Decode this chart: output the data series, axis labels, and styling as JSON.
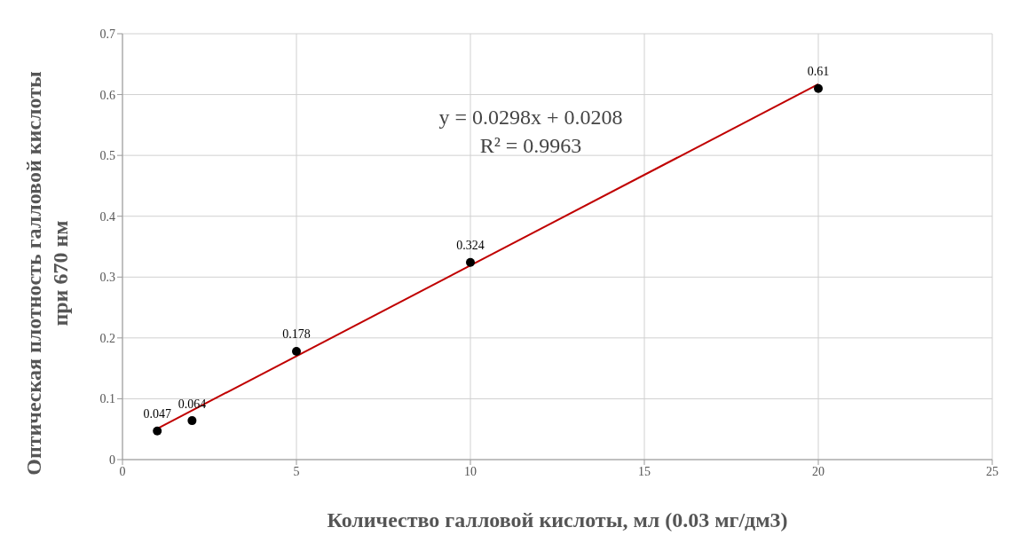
{
  "chart_data": {
    "type": "scatter",
    "xlabel": "Количество галловой кислоты, мл (0.03 мг/дм3)",
    "ylabel": "Оптическая плотность галловой кислоты при 670 нм",
    "annotations": [
      "y = 0.0298x + 0.0208",
      "R² = 0.9963"
    ],
    "xlim": [
      0,
      25
    ],
    "xticks": [
      0,
      5,
      10,
      15,
      20,
      25
    ],
    "ylim": [
      0,
      0.7
    ],
    "yticks": [
      0,
      0.1,
      0.2,
      0.3,
      0.4,
      0.5,
      0.6,
      0.7
    ],
    "grid": true,
    "series": [
      {
        "color": "#000000",
        "marker": "circle",
        "x": [
          1,
          2,
          5,
          10,
          20
        ],
        "values": [
          0.047,
          0.064,
          0.178,
          0.324,
          0.61
        ],
        "value_labels": [
          "0.047",
          "0.064",
          "0.178",
          "0.324",
          "0.61"
        ]
      },
      {
        "type": "line",
        "color": "#c00000",
        "marker": "none",
        "line_style": "solid",
        "x": [
          1,
          20
        ],
        "values": [
          0.051,
          0.617
        ]
      }
    ]
  }
}
